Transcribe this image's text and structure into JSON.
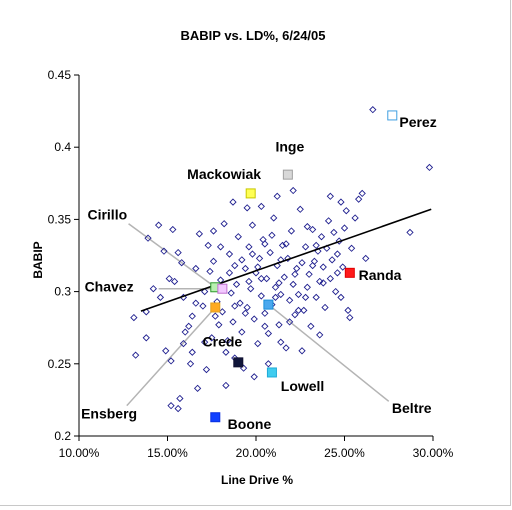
{
  "chart_data": {
    "type": "scatter",
    "title": "BABIP vs. LD%, 6/24/05",
    "xlabel": "Line Drive %",
    "ylabel": "BABIP",
    "xlim": [
      0.1,
      0.3
    ],
    "ylim": [
      0.2,
      0.45
    ],
    "x_ticks": [
      0.1,
      0.15,
      0.2,
      0.25,
      0.3
    ],
    "x_tick_labels": [
      "10.00%",
      "15.00%",
      "20.00%",
      "25.00%",
      "30.00%"
    ],
    "y_ticks": [
      0.2,
      0.25,
      0.3,
      0.35,
      0.4,
      0.45
    ],
    "y_tick_labels": [
      "0.2",
      "0.25",
      "0.3",
      "0.35",
      "0.4",
      "0.45"
    ],
    "grid": false,
    "legend": "none",
    "trendline": {
      "x": [
        0.135,
        0.299
      ],
      "y": [
        0.2865,
        0.357
      ]
    },
    "colors": {
      "points": "#1f1f8f",
      "trendline": "#000000",
      "leader": "#b4b4b4"
    },
    "points": [
      [
        0.131,
        0.282
      ],
      [
        0.132,
        0.256
      ],
      [
        0.138,
        0.286
      ],
      [
        0.138,
        0.268
      ],
      [
        0.142,
        0.302
      ],
      [
        0.146,
        0.296
      ],
      [
        0.149,
        0.259
      ],
      [
        0.152,
        0.252
      ],
      [
        0.154,
        0.307
      ],
      [
        0.156,
        0.327
      ],
      [
        0.157,
        0.226
      ],
      [
        0.148,
        0.328
      ],
      [
        0.151,
        0.309
      ],
      [
        0.158,
        0.32
      ],
      [
        0.159,
        0.296
      ],
      [
        0.16,
        0.272
      ],
      [
        0.162,
        0.276
      ],
      [
        0.163,
        0.25
      ],
      [
        0.164,
        0.283
      ],
      [
        0.166,
        0.316
      ],
      [
        0.167,
        0.233
      ],
      [
        0.168,
        0.34
      ],
      [
        0.159,
        0.264
      ],
      [
        0.17,
        0.29
      ],
      [
        0.171,
        0.3
      ],
      [
        0.172,
        0.246
      ],
      [
        0.173,
        0.332
      ],
      [
        0.174,
        0.314
      ],
      [
        0.175,
        0.268
      ],
      [
        0.176,
        0.321
      ],
      [
        0.177,
        0.283
      ],
      [
        0.178,
        0.293
      ],
      [
        0.179,
        0.277
      ],
      [
        0.18,
        0.308
      ],
      [
        0.181,
        0.286
      ],
      [
        0.182,
        0.347
      ],
      [
        0.183,
        0.235
      ],
      [
        0.184,
        0.266
      ],
      [
        0.185,
        0.326
      ],
      [
        0.186,
        0.299
      ],
      [
        0.187,
        0.279
      ],
      [
        0.188,
        0.318
      ],
      [
        0.189,
        0.305
      ],
      [
        0.19,
        0.338
      ],
      [
        0.191,
        0.292
      ],
      [
        0.192,
        0.272
      ],
      [
        0.193,
        0.247
      ],
      [
        0.194,
        0.316
      ],
      [
        0.195,
        0.289
      ],
      [
        0.196,
        0.331
      ],
      [
        0.197,
        0.302
      ],
      [
        0.198,
        0.346
      ],
      [
        0.199,
        0.281
      ],
      [
        0.2,
        0.313
      ],
      [
        0.201,
        0.264
      ],
      [
        0.202,
        0.323
      ],
      [
        0.203,
        0.297
      ],
      [
        0.204,
        0.336
      ],
      [
        0.205,
        0.285
      ],
      [
        0.206,
        0.309
      ],
      [
        0.207,
        0.271
      ],
      [
        0.208,
        0.327
      ],
      [
        0.209,
        0.291
      ],
      [
        0.21,
        0.351
      ],
      [
        0.211,
        0.303
      ],
      [
        0.212,
        0.318
      ],
      [
        0.213,
        0.277
      ],
      [
        0.214,
        0.298
      ],
      [
        0.215,
        0.332
      ],
      [
        0.216,
        0.31
      ],
      [
        0.217,
        0.261
      ],
      [
        0.218,
        0.323
      ],
      [
        0.219,
        0.294
      ],
      [
        0.22,
        0.342
      ],
      [
        0.221,
        0.305
      ],
      [
        0.222,
        0.284
      ],
      [
        0.223,
        0.316
      ],
      [
        0.224,
        0.298
      ],
      [
        0.225,
        0.357
      ],
      [
        0.226,
        0.32
      ],
      [
        0.227,
        0.287
      ],
      [
        0.228,
        0.331
      ],
      [
        0.229,
        0.303
      ],
      [
        0.23,
        0.312
      ],
      [
        0.231,
        0.276
      ],
      [
        0.232,
        0.343
      ],
      [
        0.233,
        0.321
      ],
      [
        0.234,
        0.296
      ],
      [
        0.235,
        0.328
      ],
      [
        0.236,
        0.307
      ],
      [
        0.237,
        0.338
      ],
      [
        0.238,
        0.317
      ],
      [
        0.239,
        0.289
      ],
      [
        0.24,
        0.33
      ],
      [
        0.241,
        0.349
      ],
      [
        0.242,
        0.309
      ],
      [
        0.243,
        0.322
      ],
      [
        0.244,
        0.341
      ],
      [
        0.245,
        0.3
      ],
      [
        0.246,
        0.326
      ],
      [
        0.247,
        0.335
      ],
      [
        0.248,
        0.362
      ],
      [
        0.249,
        0.317
      ],
      [
        0.25,
        0.344
      ],
      [
        0.251,
        0.356
      ],
      [
        0.252,
        0.287
      ],
      [
        0.254,
        0.33
      ],
      [
        0.256,
        0.351
      ],
      [
        0.258,
        0.364
      ],
      [
        0.26,
        0.368
      ],
      [
        0.262,
        0.323
      ],
      [
        0.248,
        0.296
      ],
      [
        0.253,
        0.282
      ],
      [
        0.236,
        0.27
      ],
      [
        0.226,
        0.259
      ],
      [
        0.229,
        0.345
      ],
      [
        0.221,
        0.37
      ],
      [
        0.187,
        0.362
      ],
      [
        0.195,
        0.358
      ],
      [
        0.203,
        0.359
      ],
      [
        0.212,
        0.366
      ],
      [
        0.242,
        0.366
      ],
      [
        0.166,
        0.292
      ],
      [
        0.171,
        0.265
      ],
      [
        0.176,
        0.342
      ],
      [
        0.199,
        0.241
      ],
      [
        0.207,
        0.25
      ],
      [
        0.214,
        0.265
      ],
      [
        0.183,
        0.258
      ],
      [
        0.188,
        0.254
      ],
      [
        0.266,
        0.426
      ],
      [
        0.287,
        0.341
      ],
      [
        0.298,
        0.386
      ],
      [
        0.152,
        0.221
      ],
      [
        0.164,
        0.258
      ],
      [
        0.156,
        0.219
      ],
      [
        0.198,
        0.326
      ],
      [
        0.201,
        0.317
      ],
      [
        0.205,
        0.333
      ],
      [
        0.209,
        0.339
      ],
      [
        0.213,
        0.306
      ],
      [
        0.217,
        0.333
      ],
      [
        0.185,
        0.313
      ],
      [
        0.192,
        0.322
      ],
      [
        0.196,
        0.307
      ],
      [
        0.18,
        0.331
      ],
      [
        0.232,
        0.318
      ],
      [
        0.238,
        0.306
      ],
      [
        0.246,
        0.313
      ],
      [
        0.228,
        0.296
      ],
      [
        0.224,
        0.287
      ],
      [
        0.219,
        0.279
      ],
      [
        0.205,
        0.276
      ],
      [
        0.194,
        0.285
      ],
      [
        0.203,
        0.309
      ],
      [
        0.211,
        0.296
      ],
      [
        0.222,
        0.312
      ],
      [
        0.214,
        0.322
      ],
      [
        0.234,
        0.332
      ],
      [
        0.188,
        0.29
      ],
      [
        0.145,
        0.346
      ],
      [
        0.139,
        0.337
      ],
      [
        0.153,
        0.343
      ]
    ],
    "highlighted": [
      {
        "name": "Perez",
        "x": 0.277,
        "y": 0.422,
        "color": "#3f9fe0",
        "fill": "#ffffff",
        "label_x": 0.281,
        "label_y": 0.414,
        "label_anchor": "start"
      },
      {
        "name": "Inge",
        "x": 0.218,
        "y": 0.381,
        "color": "#a0a0a0",
        "fill": "#d8d8d8",
        "label_x": 0.211,
        "label_y": 0.397,
        "label_anchor": "start"
      },
      {
        "name": "Mackowiak",
        "x": 0.197,
        "y": 0.368,
        "color": "#c8c800",
        "fill": "#ffff55",
        "label_x": 0.182,
        "label_y": 0.378,
        "label_anchor": "middle"
      },
      {
        "name": "Cirillo",
        "x": 0.177,
        "y": 0.303,
        "color": "#2e9a2e",
        "fill": "#b9f0b0",
        "label_x": 0.116,
        "label_y": 0.35,
        "label_anchor": "middle",
        "leader_from_x": 0.128,
        "leader_from_y": 0.347
      },
      {
        "name": "Chavez",
        "x": 0.181,
        "y": 0.302,
        "color": "#c070d0",
        "fill": "#f2c8ff",
        "label_x": 0.117,
        "label_y": 0.3,
        "label_anchor": "middle",
        "leader_from_x": 0.145,
        "leader_from_y": 0.302
      },
      {
        "name": "Randa",
        "x": 0.253,
        "y": 0.313,
        "color": "#e00000",
        "fill": "#ff1a1a",
        "label_x": 0.258,
        "label_y": 0.308,
        "label_anchor": "start"
      },
      {
        "name": "Beltre",
        "x": 0.207,
        "y": 0.291,
        "color": "#1a8ed8",
        "fill": "#4aa8ee",
        "label_x": 0.288,
        "label_y": 0.216,
        "label_anchor": "middle",
        "leader_from_x": 0.275,
        "leader_from_y": 0.224
      },
      {
        "name": "Ensberg",
        "x": 0.177,
        "y": 0.289,
        "color": "#e0a020",
        "fill": "#ffaa22",
        "label_x": 0.117,
        "label_y": 0.212,
        "label_anchor": "middle",
        "leader_from_x": 0.127,
        "leader_from_y": 0.221
      },
      {
        "name": "Crede",
        "x": 0.19,
        "y": 0.251,
        "color": "#101030",
        "fill": "#10163a",
        "label_x": 0.181,
        "label_y": 0.262,
        "label_anchor": "middle"
      },
      {
        "name": "Lowell",
        "x": 0.209,
        "y": 0.244,
        "color": "#1faad8",
        "fill": "#40ccef",
        "label_x": 0.214,
        "label_y": 0.231,
        "label_anchor": "start"
      },
      {
        "name": "Boone",
        "x": 0.177,
        "y": 0.213,
        "color": "#0a30e0",
        "fill": "#1040ff",
        "label_x": 0.184,
        "label_y": 0.205,
        "label_anchor": "start"
      }
    ]
  }
}
